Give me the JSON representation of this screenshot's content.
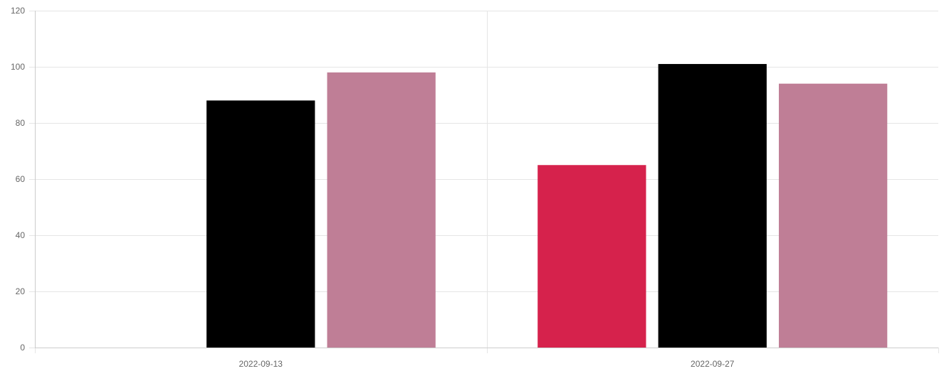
{
  "chart_data": {
    "type": "bar",
    "categories": [
      "2022-09-13",
      "2022-09-27"
    ],
    "series": [
      {
        "values": [
          null,
          65
        ],
        "color": "#d6224c"
      },
      {
        "values": [
          88,
          101
        ],
        "color": "#000000"
      },
      {
        "values": [
          98,
          94
        ],
        "color": "#bf7e96"
      }
    ],
    "title": "",
    "xlabel": "",
    "ylabel": "",
    "ylim": [
      0,
      120
    ],
    "yticks": [
      0,
      20,
      40,
      60,
      80,
      100,
      120
    ],
    "grid": true,
    "legend": "none",
    "colors": {
      "grid": "#e5e5e5",
      "axis": "#cccccc",
      "text": "#666666"
    }
  }
}
